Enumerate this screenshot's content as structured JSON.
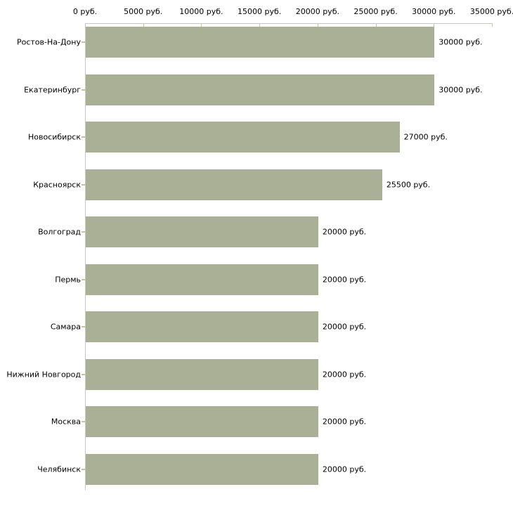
{
  "chart_data": {
    "type": "bar",
    "orientation": "horizontal",
    "title": "",
    "xlabel": "",
    "ylabel": "",
    "categories": [
      "Ростов-На-Дону",
      "Екатеринбург",
      "Новосибирск",
      "Красноярск",
      "Волгоград",
      "Пермь",
      "Самара",
      "Нижний Новгород",
      "Москва",
      "Челябинск"
    ],
    "values": [
      30000,
      30000,
      27000,
      25500,
      20000,
      20000,
      20000,
      20000,
      20000,
      20000
    ],
    "value_labels": [
      "30000 руб.",
      "30000 руб.",
      "27000 руб.",
      "25500 руб.",
      "20000 руб.",
      "20000 руб.",
      "20000 руб.",
      "20000 руб.",
      "20000 руб.",
      "20000 руб."
    ],
    "xlim": [
      0,
      35000
    ],
    "x_ticks": [
      0,
      5000,
      10000,
      15000,
      20000,
      25000,
      30000,
      35000
    ],
    "x_tick_labels": [
      "0 руб.",
      "5000 руб.",
      "10000 руб.",
      "15000 руб.",
      "20000 руб.",
      "25000 руб.",
      "30000 руб.",
      "35000 руб."
    ],
    "grid": false,
    "legend": false,
    "colors": {
      "bar": "#aab096",
      "axis_line": "#c6c6c6",
      "tick_mark": "#c3c49c",
      "text": "#000000",
      "background": "#ffffff"
    }
  }
}
